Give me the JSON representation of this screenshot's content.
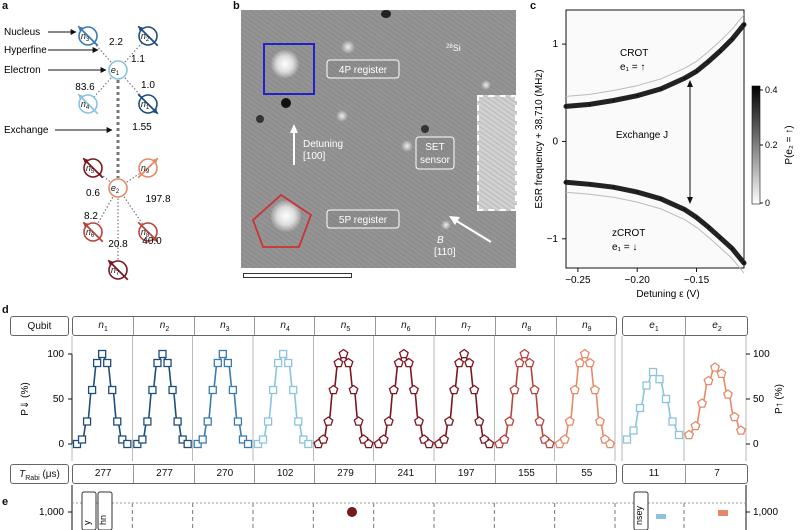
{
  "panels": {
    "a": "a",
    "b": "b",
    "c": "c",
    "d": "d",
    "e": "e"
  },
  "colors": {
    "dark_blue": "#1f4e79",
    "mid_blue": "#3b7bb0",
    "light_blue": "#8cc3de",
    "dark_red": "#7b1621",
    "red": "#b5453f",
    "salmon": "#e58a68",
    "gray": "#888888"
  },
  "panel_a": {
    "labels": {
      "nucleus": "Nucleus",
      "hyperfine": "Hyperfine",
      "electron": "Electron",
      "exchange": "Exchange"
    },
    "nodes": {
      "n1": "n",
      "n2": "n",
      "n3": "n",
      "n4": "n",
      "n5": "n",
      "n6": "n",
      "n7": "n",
      "n8": "n",
      "n9": "n",
      "e1": "e",
      "e2": "e"
    },
    "subs": {
      "n1": "1",
      "n2": "2",
      "n3": "3",
      "n4": "4",
      "n5": "5",
      "n6": "6",
      "n7": "7",
      "n8": "8",
      "n9": "9",
      "e1": "1",
      "e2": "2"
    },
    "couplings": {
      "n3": "2.2",
      "n2": "1.1",
      "n4": "83.6",
      "n1": "1.0",
      "exchange": "1.55",
      "n5": "0.6",
      "n9": "197.8",
      "n6": "8.2",
      "n8": "40.0",
      "n7": "20.8"
    }
  },
  "panel_b": {
    "isotope": "28Si",
    "isotope_mass": "28",
    "isotope_el": "Si",
    "reg4p": "4P register",
    "reg5p": "5P register",
    "detuning": "Detuning",
    "detuning_dir": "[100]",
    "set1": "SET",
    "set2": "sensor",
    "field": "B",
    "field_dir": "[110]"
  },
  "panel_c": {
    "ylabel": "ESR frequency + 38,710 (MHz)",
    "xlabel": "Detuning ε (V)",
    "xticks": [
      "−0.25",
      "−0.20",
      "−0.15"
    ],
    "yticks": [
      "1",
      "0",
      "−1"
    ],
    "crot": "CROT",
    "crot_state": "e₁ = ↑",
    "zcrot": "zCROT",
    "zcrot_state": "e₁ = ↓",
    "exchange": "Exchange J",
    "cbar_label": "P(e₂ = ↑)",
    "cbar_ticks": [
      "0.4",
      "0.2",
      "0"
    ],
    "colorbar_colors": [
      "#000000",
      "#ffffff"
    ]
  },
  "panel_d": {
    "qubit_label": "Qubit",
    "qubits": [
      {
        "n": "n",
        "sub": "1"
      },
      {
        "n": "n",
        "sub": "2"
      },
      {
        "n": "n",
        "sub": "3"
      },
      {
        "n": "n",
        "sub": "4"
      },
      {
        "n": "n",
        "sub": "5"
      },
      {
        "n": "n",
        "sub": "6"
      },
      {
        "n": "n",
        "sub": "7"
      },
      {
        "n": "n",
        "sub": "8"
      },
      {
        "n": "n",
        "sub": "9"
      },
      {
        "n": "e",
        "sub": "1"
      },
      {
        "n": "e",
        "sub": "2"
      }
    ],
    "ylabel_left": "P⇓ (%)",
    "ylabel_right": "P↑ (%)",
    "yticks": [
      "100",
      "50",
      "0"
    ],
    "trabi_label": "T",
    "trabi_sub": "Rabi",
    "trabi_unit": "(μs)",
    "trabi": [
      "277",
      "277",
      "270",
      "102",
      "279",
      "241",
      "197",
      "155",
      "55",
      "11",
      "7"
    ]
  },
  "panel_e": {
    "ytick": "1,000",
    "clipped": [
      "y",
      "hn",
      "nsey"
    ]
  },
  "chart_data": [
    {
      "type": "line",
      "title": "",
      "xlabel": "Detuning ε (V)",
      "ylabel": "ESR frequency + 38,710 (MHz)",
      "xlim": [
        -0.26,
        -0.11
      ],
      "ylim": [
        -1.3,
        1.35
      ],
      "series": [
        {
          "name": "CROT",
          "x": [
            -0.26,
            -0.24,
            -0.22,
            -0.2,
            -0.18,
            -0.16,
            -0.15,
            -0.14,
            -0.13,
            -0.12,
            -0.11
          ],
          "y": [
            0.36,
            0.38,
            0.42,
            0.47,
            0.54,
            0.65,
            0.72,
            0.82,
            0.93,
            1.05,
            1.2
          ]
        },
        {
          "name": "zCROT",
          "x": [
            -0.26,
            -0.24,
            -0.22,
            -0.2,
            -0.18,
            -0.16,
            -0.15,
            -0.14,
            -0.13,
            -0.12,
            -0.11
          ],
          "y": [
            -0.42,
            -0.44,
            -0.47,
            -0.52,
            -0.59,
            -0.7,
            -0.78,
            -0.88,
            -0.99,
            -1.1,
            -1.25
          ]
        }
      ]
    },
    {
      "type": "line",
      "title": "",
      "ylabel": "P (%)",
      "ylim": [
        0,
        100
      ],
      "series": [
        {
          "name": "n1",
          "values": [
            0,
            5,
            25,
            60,
            90,
            100,
            90,
            60,
            25,
            5,
            0
          ]
        },
        {
          "name": "n2",
          "values": [
            0,
            5,
            25,
            60,
            90,
            100,
            90,
            60,
            25,
            5,
            0
          ]
        },
        {
          "name": "n3",
          "values": [
            0,
            5,
            25,
            60,
            90,
            100,
            90,
            60,
            25,
            5,
            0
          ]
        },
        {
          "name": "n4",
          "values": [
            0,
            5,
            25,
            60,
            90,
            100,
            90,
            60,
            25,
            5,
            0
          ]
        },
        {
          "name": "n5",
          "values": [
            0,
            5,
            25,
            60,
            90,
            100,
            90,
            60,
            25,
            5,
            0
          ]
        },
        {
          "name": "n6",
          "values": [
            0,
            5,
            25,
            60,
            90,
            100,
            90,
            60,
            25,
            5,
            0
          ]
        },
        {
          "name": "n7",
          "values": [
            0,
            5,
            25,
            60,
            90,
            100,
            90,
            60,
            25,
            5,
            0
          ]
        },
        {
          "name": "n8",
          "values": [
            0,
            5,
            25,
            60,
            90,
            100,
            90,
            60,
            25,
            5,
            0
          ]
        },
        {
          "name": "n9",
          "values": [
            0,
            5,
            25,
            60,
            90,
            100,
            90,
            60,
            25,
            5,
            0
          ]
        },
        {
          "name": "e1",
          "values": [
            5,
            15,
            40,
            65,
            80,
            72,
            50,
            25,
            10
          ]
        },
        {
          "name": "e2",
          "values": [
            10,
            20,
            45,
            70,
            85,
            78,
            55,
            30,
            15
          ]
        }
      ]
    }
  ]
}
